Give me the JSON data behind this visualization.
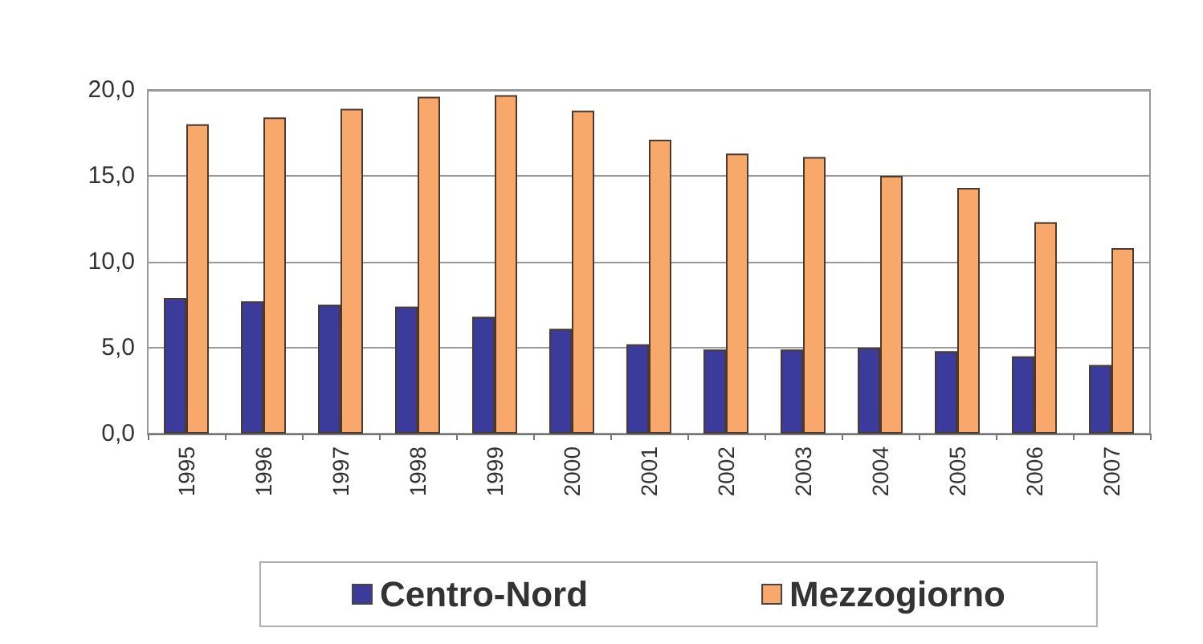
{
  "chart_data": {
    "type": "bar",
    "categories": [
      "1995",
      "1996",
      "1997",
      "1998",
      "1999",
      "2000",
      "2001",
      "2002",
      "2003",
      "2004",
      "2005",
      "2006",
      "2007"
    ],
    "series": [
      {
        "name": "Centro-Nord",
        "color": "#3b3b9c",
        "values": [
          7.9,
          7.7,
          7.5,
          7.4,
          6.8,
          6.1,
          5.2,
          4.9,
          4.9,
          5.0,
          4.8,
          4.5,
          4.0
        ]
      },
      {
        "name": "Mezzogiorno",
        "color": "#f9a86c",
        "values": [
          18.0,
          18.4,
          18.9,
          19.6,
          19.7,
          18.8,
          17.1,
          16.3,
          16.1,
          15.0,
          14.3,
          12.3,
          10.8
        ]
      }
    ],
    "ylim": [
      0,
      20
    ],
    "yticks": [
      {
        "value": 0,
        "label": "0,0"
      },
      {
        "value": 5,
        "label": "5,0"
      },
      {
        "value": 10,
        "label": "10,0"
      },
      {
        "value": 15,
        "label": "15,0"
      },
      {
        "value": 20,
        "label": "20,0"
      }
    ],
    "grid": "y",
    "legend": "bottom"
  }
}
